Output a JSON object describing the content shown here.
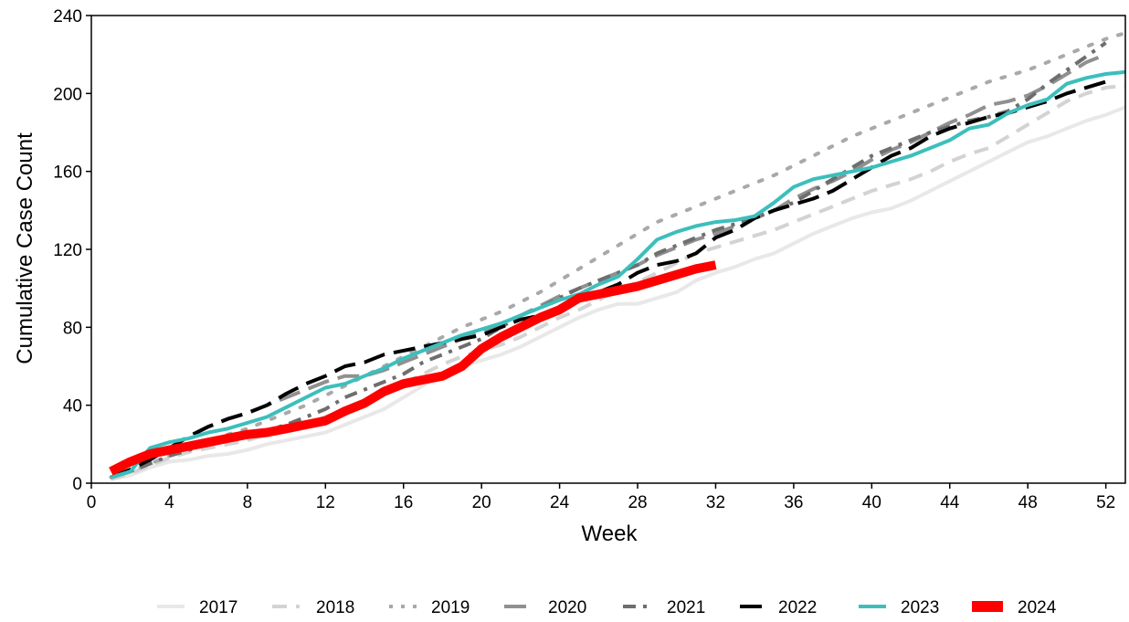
{
  "chart_data": {
    "type": "line",
    "title": "",
    "xlabel": "Week",
    "ylabel": "Cumulative Case Count",
    "xlim": [
      0,
      53
    ],
    "ylim": [
      0,
      240
    ],
    "x_ticks": [
      0,
      4,
      8,
      12,
      16,
      20,
      24,
      28,
      32,
      36,
      40,
      44,
      48,
      52
    ],
    "y_ticks": [
      0,
      40,
      80,
      120,
      160,
      200,
      240
    ],
    "grid": false,
    "legend_position": "bottom",
    "series": [
      {
        "name": "2017",
        "color": "#e8e8e8",
        "dash": "solid",
        "width": 4,
        "x": [
          1,
          2,
          3,
          4,
          5,
          6,
          7,
          8,
          9,
          10,
          11,
          12,
          13,
          14,
          15,
          16,
          17,
          18,
          19,
          20,
          21,
          22,
          23,
          24,
          25,
          26,
          27,
          28,
          29,
          30,
          31,
          32,
          33,
          34,
          35,
          36,
          37,
          38,
          39,
          40,
          41,
          42,
          43,
          44,
          45,
          46,
          47,
          48,
          49,
          50,
          51,
          52,
          53
        ],
        "y": [
          2,
          4,
          8,
          11,
          12,
          14,
          15,
          17,
          20,
          22,
          24,
          26,
          30,
          34,
          38,
          44,
          50,
          56,
          60,
          63,
          66,
          70,
          75,
          80,
          85,
          89,
          92,
          92,
          95,
          98,
          104,
          108,
          111,
          115,
          118,
          123,
          128,
          132,
          136,
          139,
          141,
          145,
          150,
          155,
          160,
          165,
          170,
          175,
          178,
          182,
          186,
          189,
          193
        ]
      },
      {
        "name": "2018",
        "color": "#d3d3d3",
        "dash": "dashed",
        "width": 4,
        "x": [
          1,
          2,
          3,
          4,
          5,
          6,
          7,
          8,
          9,
          10,
          11,
          12,
          13,
          14,
          15,
          16,
          17,
          18,
          19,
          20,
          21,
          22,
          23,
          24,
          25,
          26,
          27,
          28,
          29,
          30,
          31,
          32,
          33,
          34,
          35,
          36,
          37,
          38,
          39,
          40,
          41,
          42,
          43,
          44,
          45,
          46,
          47,
          48,
          49,
          50,
          51,
          52,
          53
        ],
        "y": [
          2,
          5,
          9,
          13,
          16,
          18,
          20,
          22,
          25,
          27,
          30,
          34,
          38,
          42,
          46,
          51,
          56,
          61,
          65,
          68,
          71,
          75,
          80,
          85,
          89,
          94,
          99,
          103,
          108,
          113,
          118,
          121,
          124,
          127,
          130,
          134,
          138,
          142,
          146,
          150,
          153,
          156,
          160,
          165,
          169,
          172,
          178,
          184,
          190,
          196,
          200,
          203,
          204
        ]
      },
      {
        "name": "2019",
        "color": "#a9a9a9",
        "dash": "dotted",
        "width": 4,
        "x": [
          1,
          2,
          3,
          4,
          5,
          6,
          7,
          8,
          9,
          10,
          11,
          12,
          13,
          14,
          15,
          16,
          17,
          18,
          19,
          20,
          21,
          22,
          23,
          24,
          25,
          26,
          27,
          28,
          29,
          30,
          31,
          32,
          33,
          34,
          35,
          36,
          37,
          38,
          39,
          40,
          41,
          42,
          43,
          44,
          45,
          46,
          47,
          48,
          49,
          50,
          51,
          52,
          53
        ],
        "y": [
          3,
          6,
          10,
          14,
          18,
          22,
          25,
          28,
          32,
          36,
          40,
          45,
          50,
          55,
          60,
          65,
          70,
          75,
          80,
          84,
          88,
          93,
          98,
          104,
          110,
          116,
          122,
          128,
          134,
          138,
          142,
          146,
          150,
          154,
          158,
          163,
          168,
          173,
          178,
          182,
          186,
          190,
          194,
          198,
          202,
          206,
          209,
          212,
          216,
          220,
          224,
          228,
          231
        ]
      },
      {
        "name": "2020",
        "color": "#909090",
        "dash": "longdash",
        "width": 4,
        "x": [
          1,
          2,
          3,
          4,
          5,
          6,
          7,
          8,
          9,
          10,
          11,
          12,
          13,
          14,
          15,
          16,
          17,
          18,
          19,
          20,
          21,
          22,
          23,
          24,
          25,
          26,
          27,
          28,
          29,
          30,
          31,
          32,
          33,
          34,
          35,
          36,
          37,
          38,
          39,
          40,
          41,
          42,
          43,
          44,
          45,
          46,
          47,
          48,
          49,
          50,
          51,
          52
        ],
        "y": [
          3,
          6,
          12,
          18,
          24,
          29,
          33,
          36,
          40,
          44,
          48,
          52,
          55,
          55,
          58,
          62,
          66,
          70,
          74,
          78,
          82,
          86,
          91,
          96,
          100,
          104,
          108,
          112,
          117,
          121,
          125,
          128,
          132,
          136,
          140,
          146,
          151,
          155,
          160,
          166,
          171,
          175,
          180,
          185,
          189,
          194,
          196,
          199,
          204,
          210,
          216,
          220
        ]
      },
      {
        "name": "2021",
        "color": "#6e6e6e",
        "dash": "dashdot",
        "width": 4,
        "x": [
          1,
          2,
          3,
          4,
          5,
          6,
          7,
          8,
          9,
          10,
          11,
          12,
          13,
          14,
          15,
          16,
          17,
          18,
          19,
          20,
          21,
          22,
          23,
          24,
          25,
          26,
          27,
          28,
          29,
          30,
          31,
          32,
          33,
          34,
          35,
          36,
          37,
          38,
          39,
          40,
          41,
          42,
          43,
          44,
          45,
          46,
          47,
          48,
          49,
          50,
          51,
          52
        ],
        "y": [
          3,
          6,
          10,
          14,
          17,
          20,
          22,
          24,
          27,
          30,
          34,
          38,
          44,
          48,
          52,
          56,
          62,
          66,
          70,
          74,
          80,
          86,
          90,
          95,
          100,
          104,
          108,
          112,
          118,
          122,
          126,
          130,
          133,
          136,
          140,
          144,
          150,
          156,
          162,
          168,
          172,
          176,
          180,
          183,
          186,
          188,
          191,
          197,
          205,
          212,
          219,
          226
        ]
      },
      {
        "name": "2022",
        "color": "#000000",
        "dash": "longdash",
        "width": 4,
        "x": [
          1,
          2,
          3,
          4,
          5,
          6,
          7,
          8,
          9,
          10,
          11,
          12,
          13,
          14,
          15,
          16,
          17,
          18,
          19,
          20,
          21,
          22,
          23,
          24,
          25,
          26,
          27,
          28,
          29,
          30,
          31,
          32,
          33,
          34,
          35,
          36,
          37,
          38,
          39,
          40,
          41,
          42,
          43,
          44,
          45,
          46,
          47,
          48,
          49,
          50,
          51,
          52
        ],
        "y": [
          3,
          7,
          12,
          18,
          24,
          29,
          33,
          36,
          40,
          46,
          51,
          55,
          60,
          62,
          66,
          68,
          70,
          72,
          74,
          76,
          80,
          84,
          86,
          90,
          94,
          98,
          102,
          108,
          112,
          114,
          118,
          126,
          130,
          136,
          140,
          143,
          146,
          150,
          156,
          162,
          168,
          172,
          178,
          182,
          185,
          188,
          190,
          193,
          196,
          200,
          203,
          206
        ]
      },
      {
        "name": "2023",
        "color": "#3cbfbc",
        "dash": "solid",
        "width": 4,
        "x": [
          1,
          2,
          3,
          4,
          5,
          6,
          7,
          8,
          9,
          10,
          11,
          12,
          13,
          14,
          15,
          16,
          17,
          18,
          19,
          20,
          21,
          22,
          23,
          24,
          25,
          26,
          27,
          28,
          29,
          30,
          31,
          32,
          33,
          34,
          35,
          36,
          37,
          38,
          39,
          40,
          41,
          42,
          43,
          44,
          45,
          46,
          47,
          48,
          49,
          50,
          51,
          52,
          53
        ],
        "y": [
          3,
          6,
          18,
          21,
          23,
          26,
          28,
          31,
          34,
          39,
          44,
          49,
          51,
          55,
          59,
          64,
          68,
          72,
          76,
          79,
          82,
          86,
          90,
          94,
          97,
          102,
          106,
          115,
          125,
          129,
          132,
          134,
          135,
          137,
          144,
          152,
          156,
          158,
          160,
          162,
          165,
          168,
          172,
          176,
          182,
          184,
          190,
          194,
          197,
          205,
          208,
          210,
          211
        ]
      },
      {
        "name": "2024",
        "color": "#ff0000",
        "dash": "solid",
        "width": 10,
        "x": [
          1,
          2,
          3,
          4,
          5,
          6,
          7,
          8,
          9,
          10,
          11,
          12,
          13,
          14,
          15,
          16,
          17,
          18,
          19,
          20,
          21,
          22,
          23,
          24,
          25,
          26,
          27,
          28,
          29,
          30,
          31,
          32
        ],
        "y": [
          6,
          11,
          15,
          17,
          19,
          21,
          23,
          25,
          26,
          28,
          30,
          32,
          37,
          41,
          47,
          51,
          53,
          55,
          60,
          69,
          75,
          80,
          85,
          89,
          95,
          97,
          99,
          101,
          104,
          107,
          110,
          112
        ]
      }
    ]
  }
}
